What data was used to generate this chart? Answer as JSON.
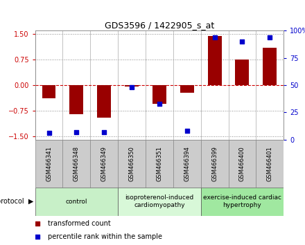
{
  "title": "GDS3596 / 1422905_s_at",
  "samples": [
    "GSM466341",
    "GSM466348",
    "GSM466349",
    "GSM466350",
    "GSM466351",
    "GSM466394",
    "GSM466399",
    "GSM466400",
    "GSM466401"
  ],
  "transformed_count": [
    -0.38,
    -0.85,
    -0.95,
    -0.05,
    -0.55,
    -0.22,
    1.45,
    0.75,
    1.1
  ],
  "percentile_rank": [
    3,
    4,
    4,
    48,
    32,
    5,
    97,
    93,
    97
  ],
  "groups": [
    {
      "label": "control",
      "start": 0,
      "end": 3,
      "color": "#c8f0c8"
    },
    {
      "label": "isoproterenol-induced\ncardiomyopathy",
      "start": 3,
      "end": 6,
      "color": "#d8f8d8"
    },
    {
      "label": "exercise-induced cardiac\nhypertrophy",
      "start": 6,
      "end": 9,
      "color": "#a0e8a0"
    }
  ],
  "ylim": [
    -1.6,
    1.6
  ],
  "yticks_left": [
    -1.5,
    -0.75,
    0,
    0.75,
    1.5
  ],
  "yticks_right": [
    0,
    25,
    50,
    75,
    100
  ],
  "bar_color": "#990000",
  "dot_color": "#0000cc",
  "bar_width": 0.5,
  "dot_size": 22,
  "protocol_label": "protocol",
  "legend_bar_label": "transformed count",
  "legend_dot_label": "percentile rank within the sample",
  "grid_color": "#888888",
  "zero_line_color": "#cc0000",
  "sample_box_color": "#cccccc",
  "sample_box_edge": "#888888"
}
